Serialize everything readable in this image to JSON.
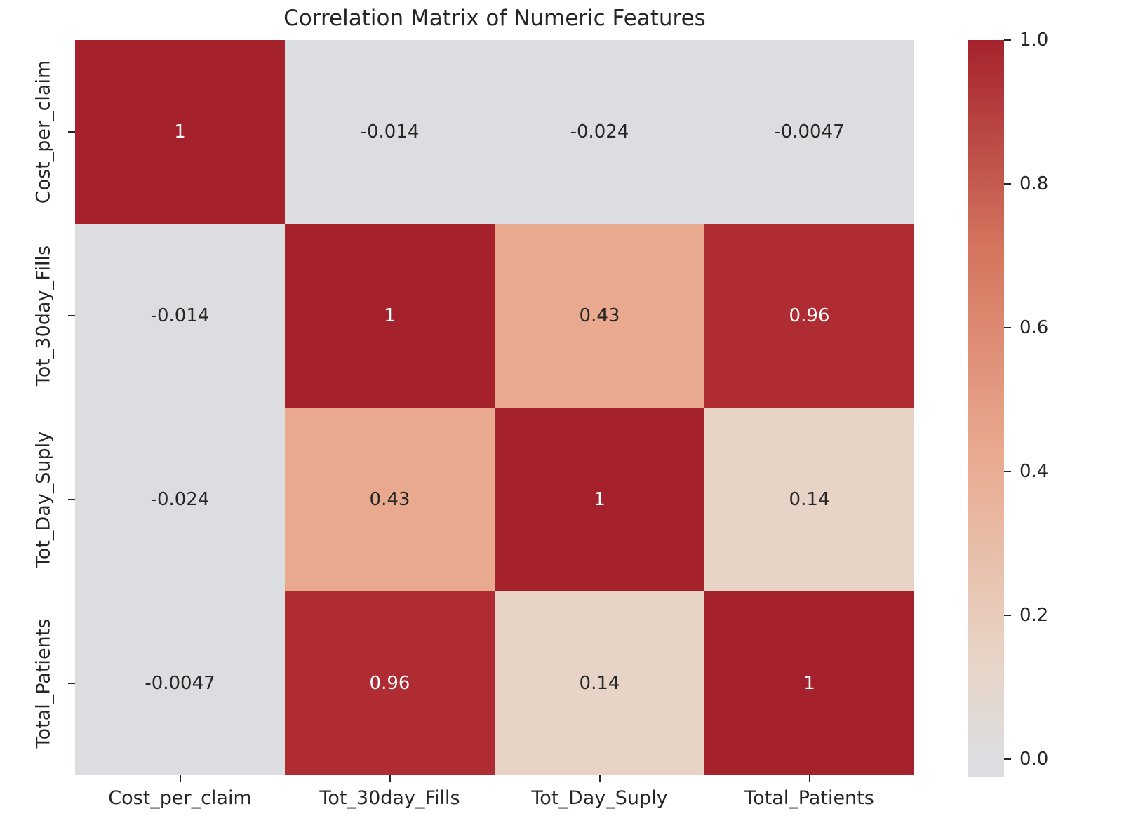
{
  "title": "Correlation Matrix of Numeric Features",
  "colors": {
    "background": "#ffffff",
    "text": "#262626",
    "annotation_dark": "#262626",
    "annotation_light": "#ffffff",
    "tick_mark": "#262626",
    "cmap_min": "#dcdde0",
    "cmap_max": "#a5222c"
  },
  "chart_data": {
    "type": "heatmap",
    "title": "Correlation Matrix of Numeric Features",
    "categories": [
      "Cost_per_claim",
      "Tot_30day_Fills",
      "Tot_Day_Suply",
      "Total_Patients"
    ],
    "matrix": [
      [
        1,
        -0.014,
        -0.024,
        -0.0047
      ],
      [
        -0.014,
        1,
        0.43,
        0.96
      ],
      [
        -0.024,
        0.43,
        1,
        0.14
      ],
      [
        -0.0047,
        0.96,
        0.14,
        1
      ]
    ],
    "labels": [
      [
        "1",
        "-0.014",
        "-0.024",
        "-0.0047"
      ],
      [
        "-0.014",
        "1",
        "0.43",
        "0.96"
      ],
      [
        "-0.024",
        "0.43",
        "1",
        "0.14"
      ],
      [
        "-0.0047",
        "0.96",
        "0.14",
        "1"
      ]
    ],
    "cell_colors": [
      [
        "#a5222c",
        "#dcdde0",
        "#dcdde0",
        "#dcdde0"
      ],
      [
        "#dcdde0",
        "#a5222c",
        "#e9a98e",
        "#ae2c32"
      ],
      [
        "#dcdde0",
        "#e9a98e",
        "#a5222c",
        "#e8d4c6"
      ],
      [
        "#dcdde0",
        "#ae2c32",
        "#e8d4c6",
        "#a5222c"
      ]
    ],
    "colorbar": {
      "vmin": -0.024,
      "vmax": 1.0,
      "tick_labels": [
        "1.0",
        "0.8",
        "0.6",
        "0.4",
        "0.2",
        "0.0"
      ],
      "tick_values": [
        1.0,
        0.8,
        0.6,
        0.4,
        0.2,
        0.0
      ],
      "gradient_stops": [
        {
          "value": -0.024,
          "hex": "#dcdde0"
        },
        {
          "value": 0.0,
          "hex": "#dcdde0"
        },
        {
          "value": 0.14,
          "hex": "#e8d4c6"
        },
        {
          "value": 0.43,
          "hex": "#e9a98e"
        },
        {
          "value": 0.71,
          "hex": "#d4755e"
        },
        {
          "value": 1.0,
          "hex": "#a5222c"
        }
      ],
      "position": "right"
    },
    "grid": false,
    "legend_position": "right"
  }
}
